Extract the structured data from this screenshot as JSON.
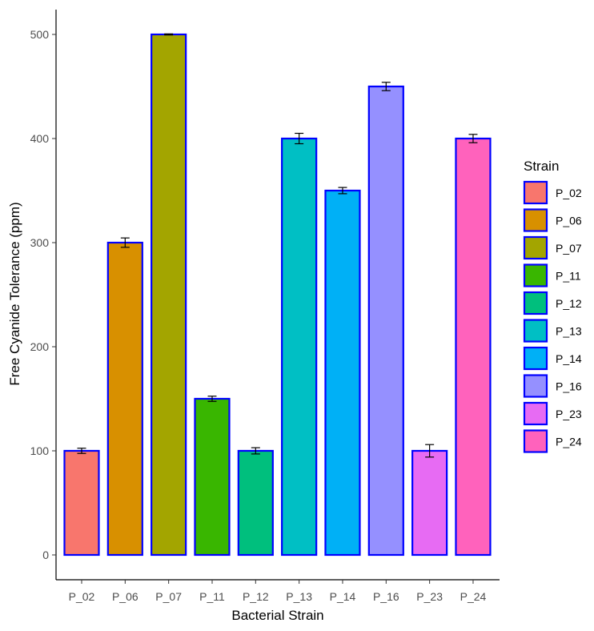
{
  "chart_data": {
    "type": "bar",
    "title": "",
    "xlabel": "Bacterial Strain",
    "ylabel": "Free Cyanide Tolerance  (ppm)",
    "ylim": [
      0,
      500
    ],
    "yticks": [
      0,
      100,
      200,
      300,
      400,
      500
    ],
    "categories": [
      "P_02",
      "P_06",
      "P_07",
      "P_11",
      "P_12",
      "P_13",
      "P_14",
      "P_16",
      "P_23",
      "P_24"
    ],
    "values": [
      100,
      300,
      500,
      150,
      100,
      400,
      350,
      450,
      100,
      400
    ],
    "error": [
      2.5,
      4.5,
      0.5,
      2.5,
      3,
      5,
      3,
      4,
      6,
      4
    ],
    "colors": [
      "#F8766D",
      "#D89000",
      "#A3A500",
      "#39B600",
      "#00BF7D",
      "#00BFC4",
      "#00B0F6",
      "#9590FF",
      "#E76BF3",
      "#FF62BC"
    ],
    "bar_outline_color": "#0000FF",
    "grid": false,
    "legend": {
      "title": "Strain",
      "position": "right",
      "entries": [
        "P_02",
        "P_06",
        "P_07",
        "P_11",
        "P_12",
        "P_13",
        "P_14",
        "P_16",
        "P_23",
        "P_24"
      ]
    }
  }
}
